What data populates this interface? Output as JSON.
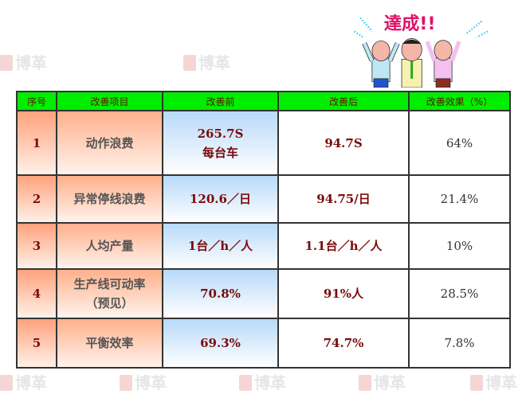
{
  "watermark": "博革",
  "banner": {
    "text": "達成!!"
  },
  "table": {
    "headers": [
      "序号",
      "改善项目",
      "改善前",
      "改善后",
      "改善效果（%）"
    ],
    "rows": [
      {
        "no": "1",
        "item": "动作浪费",
        "before": "265.7S\n每台车",
        "after": "94.7S",
        "effect": "64%"
      },
      {
        "no": "2",
        "item": "异常停线浪费",
        "before": "120.6／日",
        "after": "94.75/日",
        "effect": "21.4%"
      },
      {
        "no": "3",
        "item": "人均产量",
        "before": "1台／h／人",
        "after": "1.1台／h／人",
        "effect": "10%"
      },
      {
        "no": "4",
        "item": "生产线可动率\n（预见）",
        "before": "70.8%",
        "after": "91%人",
        "effect": "28.5%"
      },
      {
        "no": "5",
        "item": "平衡效率",
        "before": "69.3%",
        "after": "74.7%",
        "effect": "7.8%"
      }
    ]
  }
}
